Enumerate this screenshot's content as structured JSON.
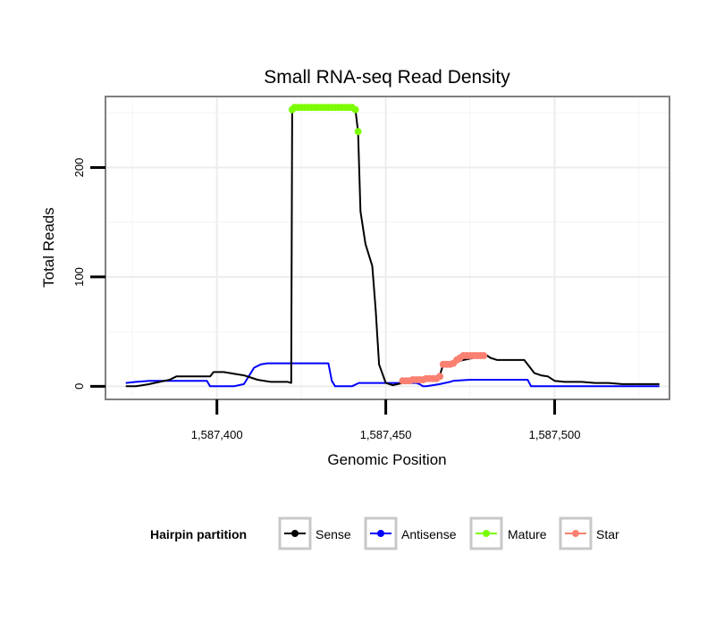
{
  "chart_data": {
    "type": "line",
    "title": "Small RNA-seq Read Density",
    "xlabel": "Genomic Position",
    "ylabel": "Total Reads",
    "xlim": [
      1587367,
      1587534
    ],
    "ylim": [
      -12,
      265
    ],
    "x_ticks": [
      1587400,
      1587450,
      1587500
    ],
    "x_tick_labels": [
      "1,587,400",
      "1,587,450",
      "1,587,500"
    ],
    "y_ticks": [
      0,
      100,
      200
    ],
    "y_tick_labels": [
      "0",
      "100",
      "200"
    ],
    "grid": true,
    "legend": {
      "title": "Hairpin partition",
      "placement": "bottom",
      "entries": [
        {
          "label": "Sense",
          "color": "#000000"
        },
        {
          "label": "Antisense",
          "color": "#0000ff"
        },
        {
          "label": "Mature",
          "color": "#7cfc00"
        },
        {
          "label": "Star",
          "color": "#fa8072"
        }
      ]
    },
    "series": [
      {
        "name": "Sense",
        "color": "#000000",
        "style": "line",
        "x": [
          1587373,
          1587376,
          1587378,
          1587380,
          1587383,
          1587386,
          1587388,
          1587391,
          1587395,
          1587398,
          1587399,
          1587402,
          1587404,
          1587406,
          1587408,
          1587410,
          1587412,
          1587414,
          1587416,
          1587418,
          1587420,
          1587421,
          1587422,
          1587422.3,
          1587423,
          1587428,
          1587435,
          1587440,
          1587441,
          1587441.8,
          1587442.5,
          1587444,
          1587446,
          1587447,
          1587448,
          1587450,
          1587452,
          1587455,
          1587460,
          1587464,
          1587466,
          1587467,
          1587470,
          1587473,
          1587476,
          1587478,
          1587479,
          1587480,
          1587481,
          1587483,
          1587486,
          1587489,
          1587491,
          1587492,
          1587494,
          1587496,
          1587498,
          1587500,
          1587503,
          1587505,
          1587508,
          1587512,
          1587516,
          1587520,
          1587525,
          1587531
        ],
        "values": [
          0,
          0,
          1,
          2,
          4,
          6,
          9,
          9,
          9,
          9,
          13,
          13,
          12,
          11,
          10,
          8,
          6,
          5,
          4,
          4,
          4,
          4,
          3,
          255,
          255,
          255,
          255,
          255,
          253,
          233,
          160,
          130,
          110,
          70,
          20,
          3,
          1,
          3,
          5,
          7,
          10,
          20,
          22,
          24,
          26,
          28,
          28,
          28,
          26,
          24,
          24,
          24,
          24,
          20,
          12,
          10,
          9,
          5,
          4,
          4,
          4,
          3,
          3,
          2,
          2,
          2
        ]
      },
      {
        "name": "Antisense",
        "color": "#0000ff",
        "style": "line",
        "x": [
          1587373,
          1587376,
          1587380,
          1587385,
          1587390,
          1587397,
          1587398,
          1587400,
          1587405,
          1587408,
          1587409,
          1587411,
          1587413,
          1587415,
          1587420,
          1587424,
          1587430,
          1587433,
          1587434,
          1587435,
          1587440,
          1587442,
          1587450,
          1587455,
          1587459,
          1587460,
          1587461,
          1587462,
          1587466,
          1587469,
          1587470,
          1587475,
          1587480,
          1587485,
          1587490,
          1587492,
          1587493,
          1587495,
          1587500,
          1587510,
          1587520,
          1587531
        ],
        "values": [
          3,
          4,
          5,
          5,
          5,
          5,
          0,
          0,
          0,
          2,
          7,
          17,
          20,
          21,
          21,
          21,
          21,
          21,
          5,
          0,
          0,
          3,
          3,
          3,
          3,
          2,
          0,
          0,
          2,
          4,
          5,
          6,
          6,
          6,
          6,
          6,
          0,
          0,
          0,
          0,
          0,
          0
        ]
      },
      {
        "name": "Mature",
        "color": "#7cfc00",
        "style": "points",
        "x": [
          1587422.3,
          1587423,
          1587424,
          1587425,
          1587426,
          1587427,
          1587428,
          1587429,
          1587430,
          1587431,
          1587432,
          1587433,
          1587434,
          1587435,
          1587436,
          1587437,
          1587438,
          1587439,
          1587440,
          1587441,
          1587441.8
        ],
        "values": [
          253,
          255,
          255,
          255,
          255,
          255,
          255,
          255,
          255,
          255,
          255,
          255,
          255,
          255,
          255,
          255,
          255,
          255,
          255,
          253,
          233
        ]
      },
      {
        "name": "Star",
        "color": "#fa8072",
        "style": "points",
        "x": [
          1587455,
          1587456,
          1587457,
          1587458,
          1587459,
          1587460,
          1587461,
          1587462,
          1587463,
          1587464,
          1587465,
          1587466,
          1587467,
          1587468,
          1587469,
          1587470,
          1587471,
          1587472,
          1587473,
          1587474,
          1587475,
          1587476,
          1587477,
          1587478,
          1587479
        ],
        "values": [
          5,
          5,
          5,
          6,
          6,
          6,
          6,
          7,
          7,
          7,
          7,
          9,
          20,
          20,
          20,
          21,
          24,
          26,
          28,
          28,
          28,
          28,
          28,
          28,
          28
        ]
      }
    ]
  }
}
